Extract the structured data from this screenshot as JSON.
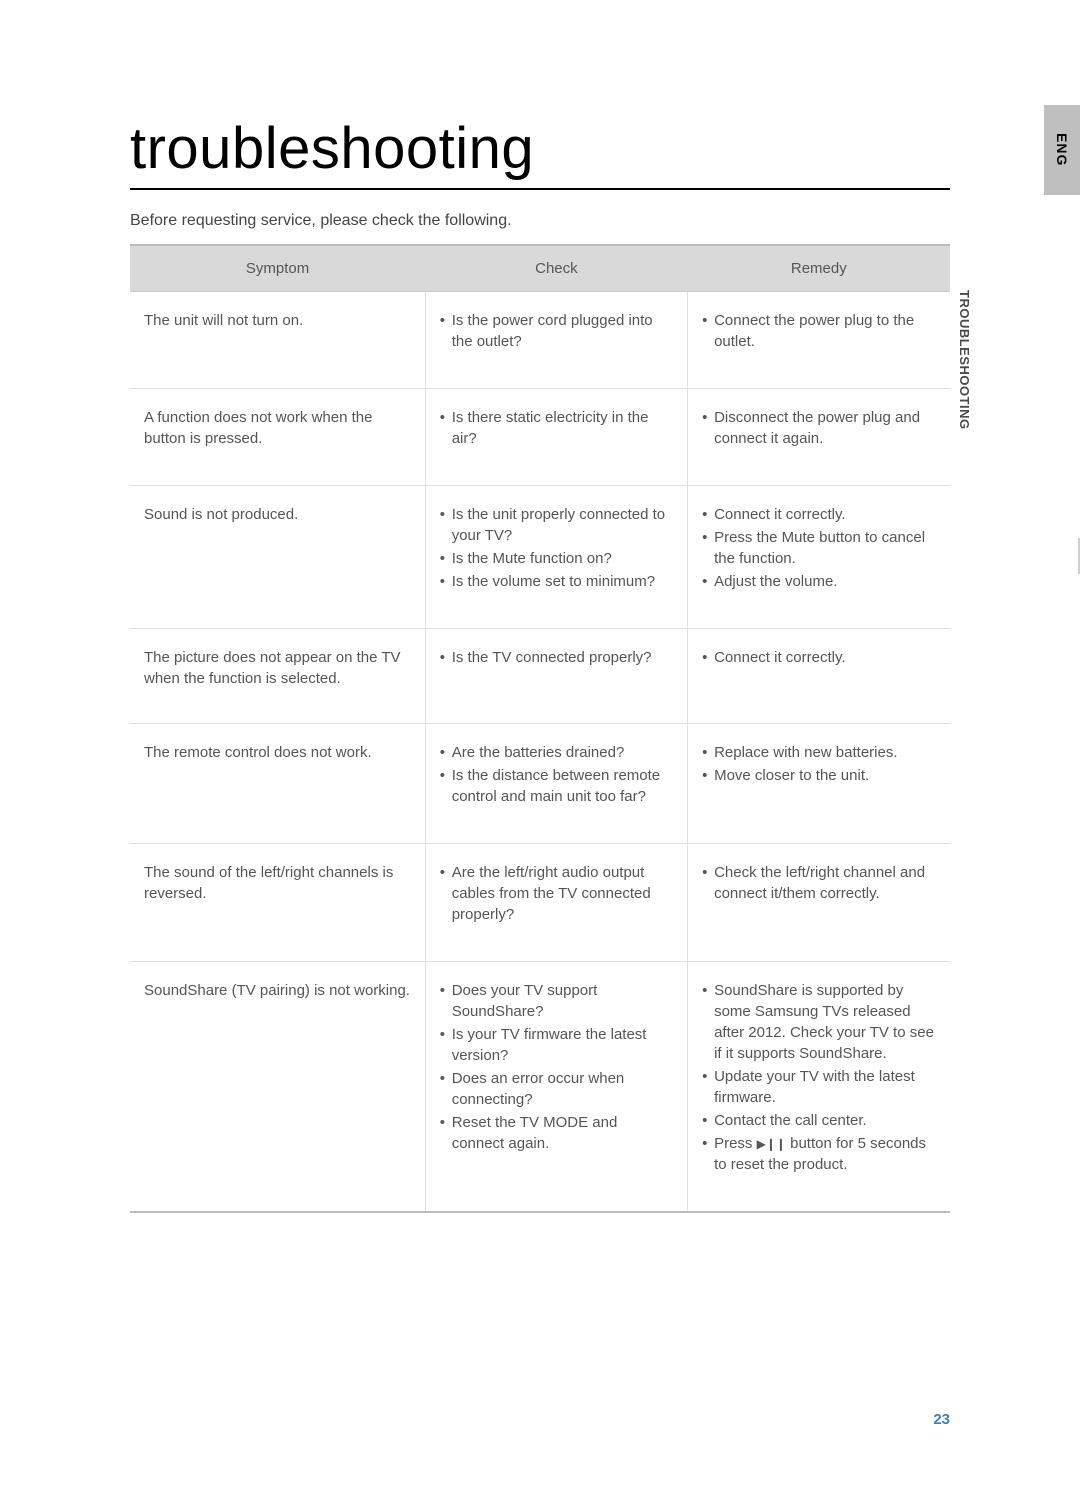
{
  "title": "troubleshooting",
  "intro": "Before requesting service, please check the following.",
  "eng": "ENG",
  "sideLabel": "TROUBLESHOOTING",
  "pageNum": "23",
  "headers": [
    "Symptom",
    "Check",
    "Remedy"
  ],
  "rows": [
    {
      "symptom": "The unit will not turn on.",
      "checks": [
        "Is the power cord plugged into the outlet?"
      ],
      "remedies": [
        "Connect the power plug to the outlet."
      ]
    },
    {
      "symptom": "A function does not work when the button is pressed.",
      "checks": [
        "Is there static electricity in the air?"
      ],
      "remedies": [
        "Disconnect the power plug and connect it again."
      ]
    },
    {
      "symptom": "Sound is not produced.",
      "checks": [
        "Is the unit properly connected to your TV?",
        "Is the Mute function on?",
        "Is the volume set to minimum?"
      ],
      "remedies": [
        "Connect it correctly.",
        "Press the Mute button to cancel the function.",
        "Adjust the volume."
      ]
    },
    {
      "symptom": "The picture does not appear on the TV when the function is selected.",
      "checks": [
        "Is the TV connected properly?"
      ],
      "remedies": [
        "Connect it correctly."
      ]
    },
    {
      "symptom": "The remote control does not work.",
      "checks": [
        "Are the batteries drained?",
        "Is the distance between remote control and main unit too far?"
      ],
      "remedies": [
        "Replace with new batteries.",
        "Move closer to the unit."
      ]
    },
    {
      "symptom": "The sound of the left/right channels is reversed.",
      "checks": [
        "Are the left/right audio output cables from the TV connected properly?"
      ],
      "remedies": [
        "Check the left/right channel and connect it/them correctly."
      ]
    },
    {
      "symptom": "SoundShare (TV pairing) is not working.",
      "checks": [
        "Does your TV support SoundShare?",
        "Is your TV firmware the latest version?",
        "Does an error occur when connecting?",
        "Reset the TV MODE and connect again."
      ],
      "remedies": [
        "SoundShare  is supported by some Samsung TVs released after 2012. Check your TV to see if it supports SoundShare.",
        "Update your TV with the latest firmware.",
        "Contact the call center.",
        "Press __PP__ button for 5 seconds to reset the product."
      ]
    }
  ]
}
